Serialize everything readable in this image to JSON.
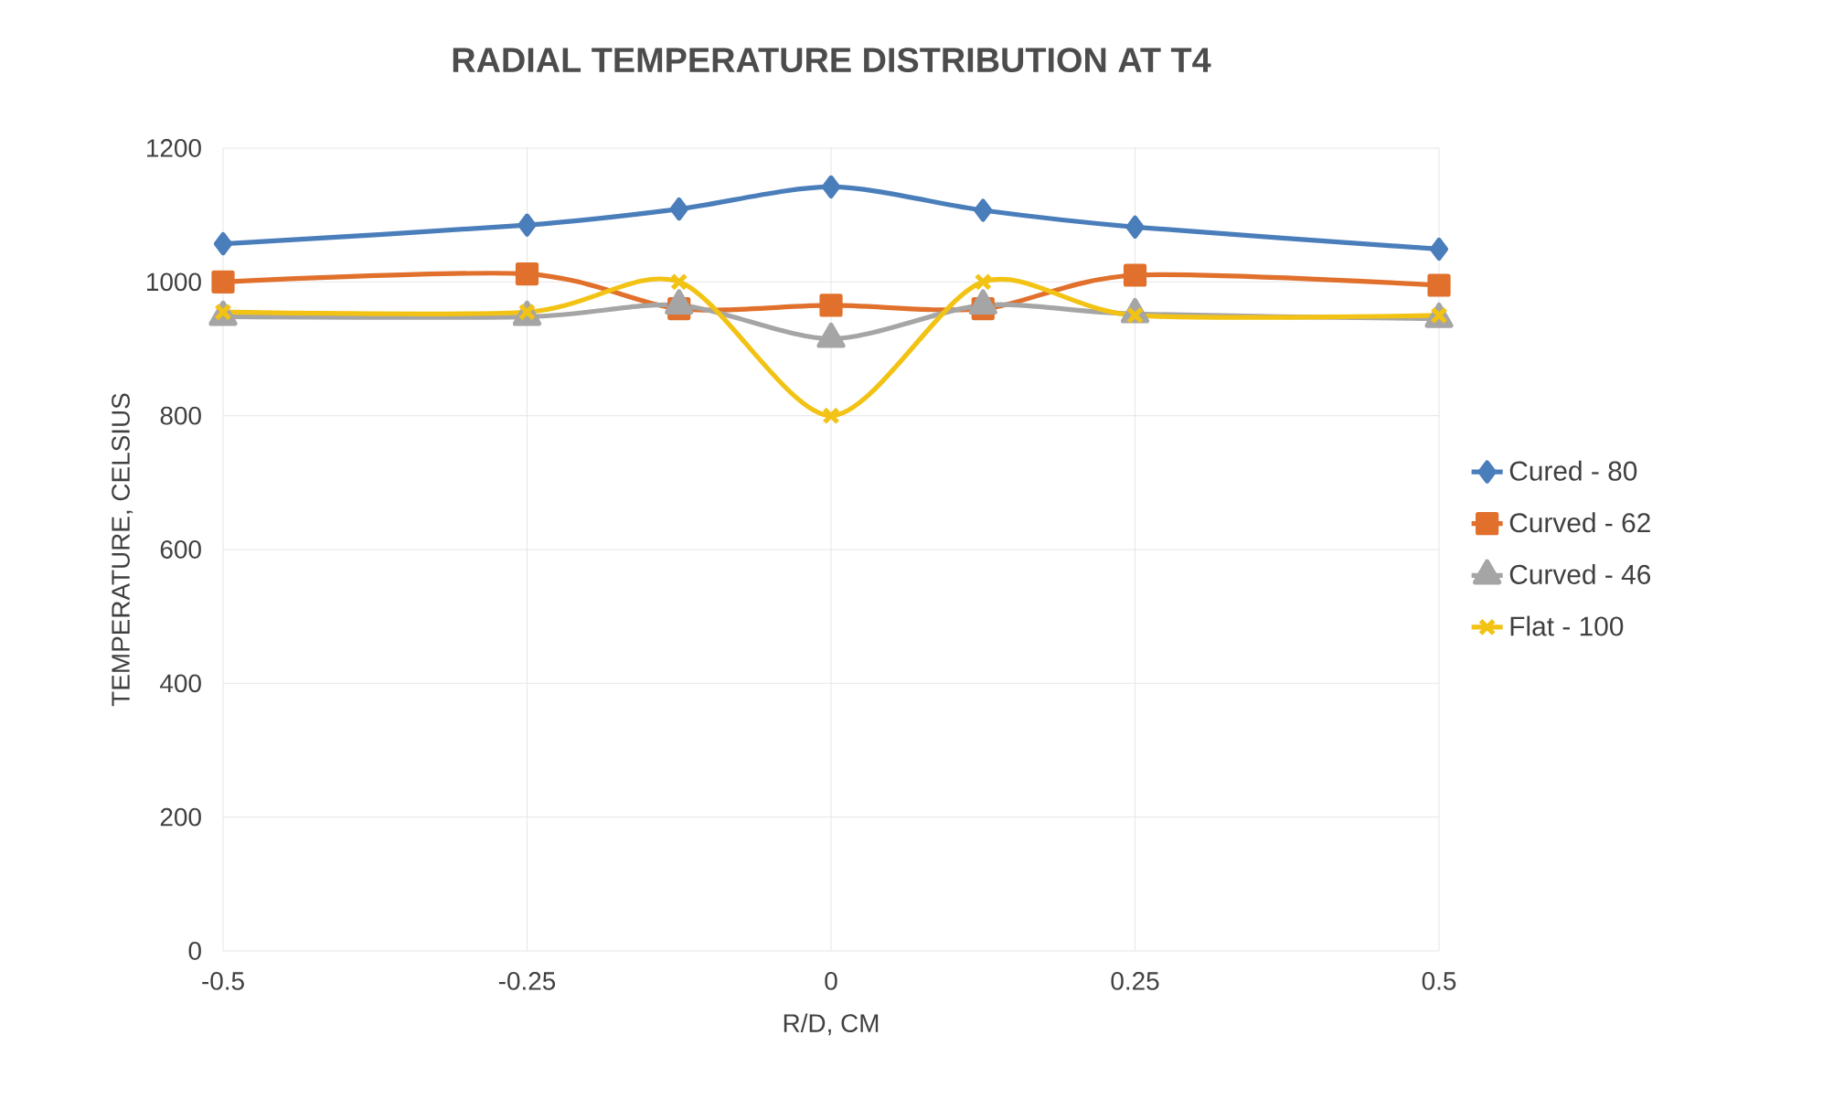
{
  "chart_data": {
    "type": "line",
    "title": "RADIAL TEMPERATURE DISTRIBUTION AT T4",
    "xlabel": "R/D, CM",
    "ylabel": "TEMPERATURE, CELSIUS",
    "x": [
      -0.5,
      -0.25,
      -0.125,
      0,
      0.125,
      0.25,
      0.5
    ],
    "series": [
      {
        "name": "Cured - 80",
        "color": "#4a7ebb",
        "marker": "diamond",
        "values": [
          1057,
          1085,
          1109,
          1142,
          1107,
          1082,
          1049
        ]
      },
      {
        "name": "Curved - 62",
        "color": "#e0702c",
        "marker": "square",
        "values": [
          1000,
          1012,
          960,
          965,
          960,
          1010,
          995
        ]
      },
      {
        "name": "Curved - 46",
        "color": "#a5a5a5",
        "marker": "triangle",
        "values": [
          948,
          948,
          965,
          915,
          965,
          952,
          945
        ]
      },
      {
        "name": "Flat - 100",
        "color": "#f2c314",
        "marker": "cross",
        "values": [
          955,
          955,
          1000,
          800,
          1000,
          950,
          950
        ]
      }
    ],
    "xlim": [
      -0.5,
      0.5
    ],
    "xticks": [
      -0.5,
      -0.25,
      0,
      0.25,
      0.5
    ],
    "ylim": [
      0,
      1200
    ],
    "yticks": [
      0,
      200,
      400,
      600,
      800,
      1000,
      1200
    ],
    "grid": true,
    "legend": "right"
  }
}
